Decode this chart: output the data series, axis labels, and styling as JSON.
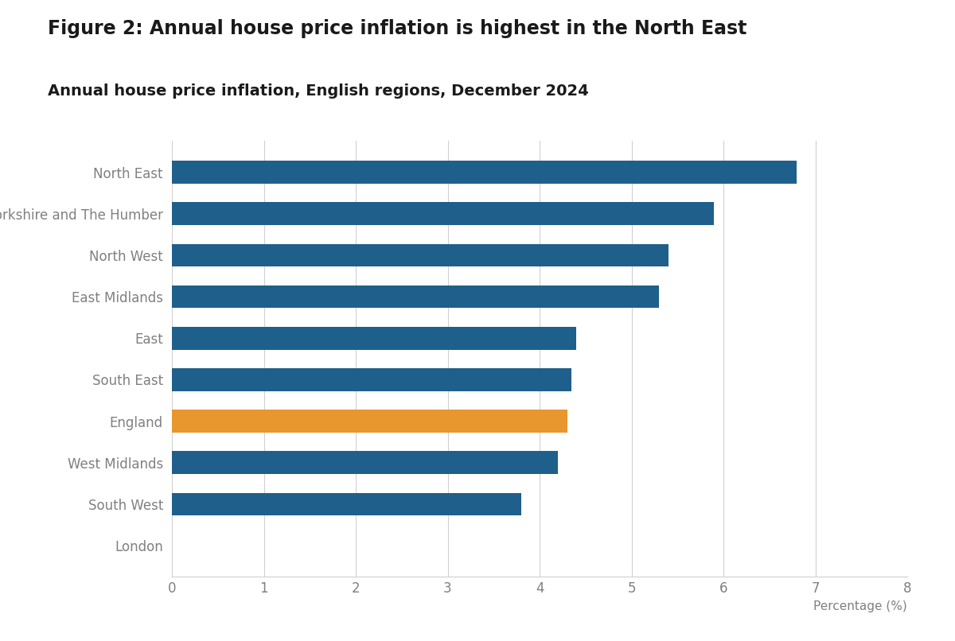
{
  "title": "Figure 2: Annual house price inflation is highest in the North East",
  "subtitle": "Annual house price inflation, English regions, December 2024",
  "categories": [
    "North East",
    "Yorkshire and The Humber",
    "North West",
    "East Midlands",
    "East",
    "South East",
    "England",
    "West Midlands",
    "South West",
    "London"
  ],
  "values": [
    6.8,
    5.9,
    5.4,
    5.3,
    4.4,
    4.35,
    4.3,
    4.2,
    3.8,
    0.0
  ],
  "bar_colors": [
    "#1f5f8b",
    "#1f5f8b",
    "#1f5f8b",
    "#1f5f8b",
    "#1f5f8b",
    "#1f5f8b",
    "#e8962e",
    "#1f5f8b",
    "#1f5f8b",
    "#1f5f8b"
  ],
  "xlim": [
    0,
    8
  ],
  "xticks": [
    0,
    1,
    2,
    3,
    4,
    5,
    6,
    7,
    8
  ],
  "xlabel": "Percentage (%)",
  "background_color": "#ffffff",
  "title_fontsize": 17,
  "subtitle_fontsize": 14,
  "tick_fontsize": 12,
  "label_fontsize": 11,
  "ytick_color": "#808080",
  "grid_color": "#d0d0d0",
  "bar_height": 0.55
}
